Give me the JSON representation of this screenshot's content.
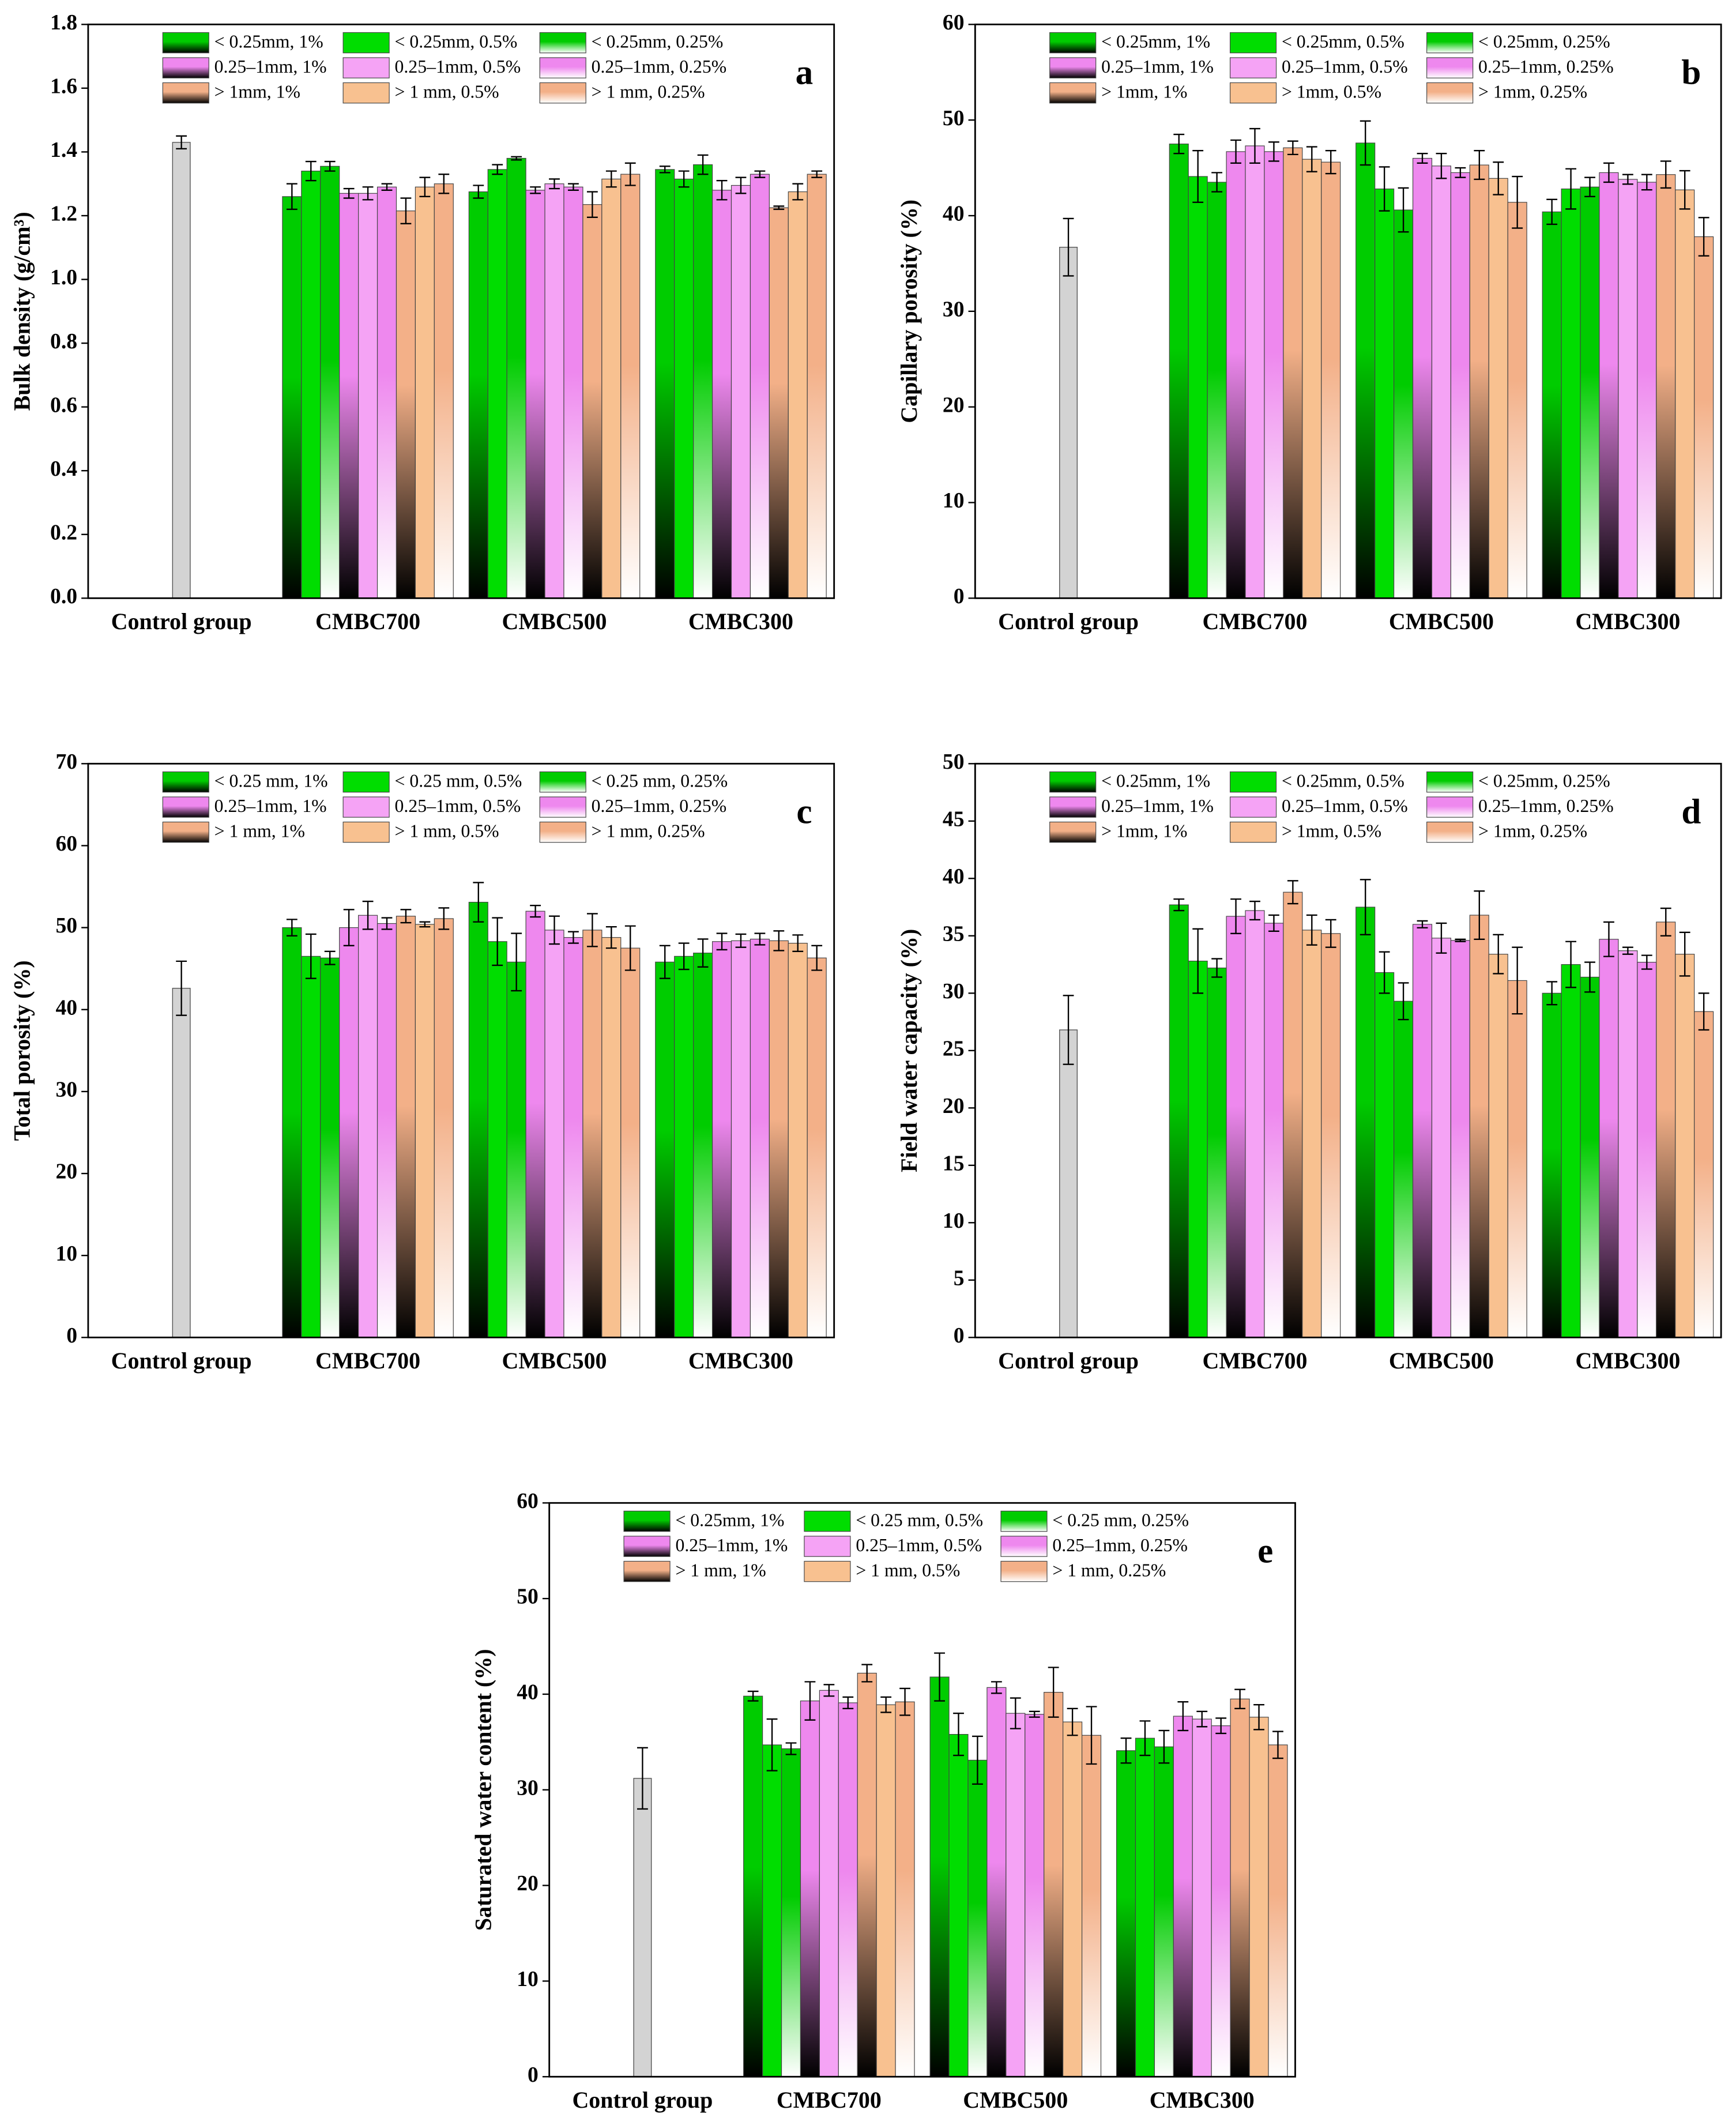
{
  "chart_data": [
    {
      "type": "bar",
      "panel_label": "a",
      "y_label": "Bulk density (g/cm³)",
      "categories": [
        "Control group",
        "CMBC700",
        "CMBC500",
        "CMBC300"
      ],
      "ylim": [
        0,
        1.8
      ],
      "yticks": [
        {
          "value": 0,
          "label": "0.0"
        },
        0.2,
        0.4,
        0.6,
        0.8,
        {
          "value": 1,
          "label": "1.0"
        },
        1.2,
        1.4,
        1.6,
        1.8
      ],
      "control": {
        "value": 1.43,
        "error": 0.02,
        "color": "#d3d3d3"
      },
      "series": [
        {
          "name": "< 0.25mm, 1%",
          "color": "#00cc00",
          "gradient_to": "#000000",
          "values": [
            null,
            1.26,
            1.275,
            1.345
          ],
          "errors": [
            null,
            0.04,
            0.02,
            0.01
          ]
        },
        {
          "name": "< 0.25mm, 0.5%",
          "color": "#00dd00",
          "values": [
            null,
            1.34,
            1.345,
            1.315
          ],
          "errors": [
            null,
            0.03,
            0.015,
            0.025
          ]
        },
        {
          "name": "< 0.25mm, 0.25%",
          "color": "#00cc00",
          "gradient_to": "#ffffff",
          "values": [
            null,
            1.355,
            1.38,
            1.36
          ],
          "errors": [
            null,
            0.015,
            0.005,
            0.03
          ]
        },
        {
          "name": "0.25–1mm, 1%",
          "color": "#ee88ee",
          "gradient_to": "#000000",
          "values": [
            null,
            1.27,
            1.28,
            1.28
          ],
          "errors": [
            null,
            0.015,
            0.01,
            0.03
          ]
        },
        {
          "name": "0.25–1mm, 0.5%",
          "color": "#f5a3f5",
          "values": [
            null,
            1.27,
            1.3,
            1.295
          ],
          "errors": [
            null,
            0.02,
            0.015,
            0.025
          ]
        },
        {
          "name": "0.25–1mm, 0.25%",
          "color": "#ee88ee",
          "gradient_to": "#ffffff",
          "values": [
            null,
            1.29,
            1.29,
            1.33
          ],
          "errors": [
            null,
            0.01,
            0.01,
            0.01
          ]
        },
        {
          "name": "> 1mm, 1%",
          "color": "#f3b088",
          "gradient_to": "#000000",
          "values": [
            null,
            1.215,
            1.235,
            1.225
          ],
          "errors": [
            null,
            0.04,
            0.04,
            0.005
          ]
        },
        {
          "name": "> 1 mm, 0.5%",
          "color": "#f8c190",
          "values": [
            null,
            1.29,
            1.315,
            1.275
          ],
          "errors": [
            null,
            0.03,
            0.025,
            0.025
          ]
        },
        {
          "name": "> 1 mm, 0.25%",
          "color": "#f3b088",
          "gradient_to": "#ffffff",
          "values": [
            null,
            1.3,
            1.33,
            1.33
          ],
          "errors": [
            null,
            0.03,
            0.035,
            0.01
          ]
        }
      ]
    },
    {
      "type": "bar",
      "panel_label": "b",
      "y_label": "Capillary porosity (%)",
      "categories": [
        "Control group",
        "CMBC700",
        "CMBC500",
        "CMBC300"
      ],
      "ylim": [
        0,
        60
      ],
      "yticks": [
        0,
        10,
        20,
        30,
        40,
        50,
        60
      ],
      "control": {
        "value": 36.7,
        "error": 3,
        "color": "#d3d3d3"
      },
      "series": [
        {
          "name": "< 0.25mm, 1%",
          "color": "#00cc00",
          "gradient_to": "#000000",
          "values": [
            null,
            47.5,
            47.6,
            40.4
          ],
          "errors": [
            null,
            1,
            2.3,
            1.3
          ]
        },
        {
          "name": "< 0.25mm, 0.5%",
          "color": "#00dd00",
          "values": [
            null,
            44.1,
            42.8,
            42.8
          ],
          "errors": [
            null,
            2.7,
            2.3,
            2.1
          ]
        },
        {
          "name": "< 0.25mm, 0.25%",
          "color": "#00cc00",
          "gradient_to": "#ffffff",
          "values": [
            null,
            43.5,
            40.6,
            43.0
          ],
          "errors": [
            null,
            1,
            2.3,
            1
          ]
        },
        {
          "name": "0.25–1mm, 1%",
          "color": "#ee88ee",
          "gradient_to": "#000000",
          "values": [
            null,
            46.7,
            46.0,
            44.5
          ],
          "errors": [
            null,
            1.2,
            0.5,
            1
          ]
        },
        {
          "name": "0.25–1mm, 0.5%",
          "color": "#f5a3f5",
          "values": [
            null,
            47.3,
            45.2,
            43.8
          ],
          "errors": [
            null,
            1.8,
            1.3,
            0.5
          ]
        },
        {
          "name": "0.25–1mm, 0.25%",
          "color": "#ee88ee",
          "gradient_to": "#ffffff",
          "values": [
            null,
            46.7,
            44.5,
            43.5
          ],
          "errors": [
            null,
            1,
            0.5,
            0.8
          ]
        },
        {
          "name": "> 1mm, 1%",
          "color": "#f3b088",
          "gradient_to": "#000000",
          "values": [
            null,
            47.1,
            45.3,
            44.3
          ],
          "errors": [
            null,
            0.7,
            1.5,
            1.4
          ]
        },
        {
          "name": "> 1mm, 0.5%",
          "color": "#f8c190",
          "values": [
            null,
            45.9,
            43.9,
            42.7
          ],
          "errors": [
            null,
            1.3,
            1.7,
            2
          ]
        },
        {
          "name": "> 1mm, 0.25%",
          "color": "#f3b088",
          "gradient_to": "#ffffff",
          "values": [
            null,
            45.6,
            41.4,
            37.8
          ],
          "errors": [
            null,
            1.2,
            2.7,
            2
          ]
        }
      ]
    },
    {
      "type": "bar",
      "panel_label": "c",
      "y_label": "Total porosity (%)",
      "categories": [
        "Control group",
        "CMBC700",
        "CMBC500",
        "CMBC300"
      ],
      "ylim": [
        0,
        70
      ],
      "yticks": [
        0,
        10,
        20,
        30,
        40,
        50,
        60,
        70
      ],
      "control": {
        "value": 42.6,
        "error": 3.3,
        "color": "#d3d3d3"
      },
      "series": [
        {
          "name": "< 0.25 mm, 1%",
          "color": "#00cc00",
          "gradient_to": "#000000",
          "values": [
            null,
            50.0,
            53.1,
            45.8
          ],
          "errors": [
            null,
            1,
            2.4,
            2
          ]
        },
        {
          "name": "< 0.25 mm, 0.5%",
          "color": "#00dd00",
          "values": [
            null,
            46.5,
            48.3,
            46.5
          ],
          "errors": [
            null,
            2.7,
            2.9,
            1.6
          ]
        },
        {
          "name": "< 0.25 mm, 0.25%",
          "color": "#00cc00",
          "gradient_to": "#ffffff",
          "values": [
            null,
            46.3,
            45.8,
            46.9
          ],
          "errors": [
            null,
            0.8,
            3.5,
            1.7
          ]
        },
        {
          "name": "0.25–1mm, 1%",
          "color": "#ee88ee",
          "gradient_to": "#000000",
          "values": [
            null,
            50.0,
            52.0,
            48.3
          ],
          "errors": [
            null,
            2.2,
            0.7,
            1
          ]
        },
        {
          "name": "0.25–1mm, 0.5%",
          "color": "#f5a3f5",
          "values": [
            null,
            51.5,
            49.7,
            48.4
          ],
          "errors": [
            null,
            1.7,
            1.7,
            0.8
          ]
        },
        {
          "name": "0.25–1mm, 0.25%",
          "color": "#ee88ee",
          "gradient_to": "#ffffff",
          "values": [
            null,
            50.5,
            48.8,
            48.6
          ],
          "errors": [
            null,
            0.7,
            0.7,
            0.7
          ]
        },
        {
          "name": "> 1 mm, 1%",
          "color": "#f3b088",
          "gradient_to": "#000000",
          "values": [
            null,
            51.4,
            49.7,
            48.4
          ],
          "errors": [
            null,
            0.8,
            2,
            1.2
          ]
        },
        {
          "name": "> 1 mm, 0.5%",
          "color": "#f8c190",
          "values": [
            null,
            50.4,
            48.8,
            48.1
          ],
          "errors": [
            null,
            0.3,
            1.3,
            1
          ]
        },
        {
          "name": "> 1 mm, 0.25%",
          "color": "#f3b088",
          "gradient_to": "#ffffff",
          "values": [
            null,
            51.1,
            47.5,
            46.3
          ],
          "errors": [
            null,
            1.3,
            2.7,
            1.5
          ]
        }
      ]
    },
    {
      "type": "bar",
      "panel_label": "d",
      "y_label": "Field water capacity (%)",
      "categories": [
        "Control group",
        "CMBC700",
        "CMBC500",
        "CMBC300"
      ],
      "ylim": [
        0,
        50
      ],
      "yticks": [
        0,
        5,
        10,
        15,
        20,
        25,
        30,
        35,
        40,
        45,
        50
      ],
      "control": {
        "value": 26.8,
        "error": 3,
        "color": "#d3d3d3"
      },
      "series": [
        {
          "name": "< 0.25mm, 1%",
          "color": "#00cc00",
          "gradient_to": "#000000",
          "values": [
            null,
            37.7,
            37.5,
            30.0
          ],
          "errors": [
            null,
            0.5,
            2.4,
            1
          ]
        },
        {
          "name": "< 0.25mm, 0.5%",
          "color": "#00dd00",
          "values": [
            null,
            32.8,
            31.8,
            32.5
          ],
          "errors": [
            null,
            2.8,
            1.8,
            2
          ]
        },
        {
          "name": "< 0.25mm, 0.25%",
          "color": "#00cc00",
          "gradient_to": "#ffffff",
          "values": [
            null,
            32.2,
            29.3,
            31.4
          ],
          "errors": [
            null,
            0.8,
            1.6,
            1.3
          ]
        },
        {
          "name": "0.25–1mm, 1%",
          "color": "#ee88ee",
          "gradient_to": "#000000",
          "values": [
            null,
            36.7,
            36.0,
            34.7
          ],
          "errors": [
            null,
            1.5,
            0.3,
            1.5
          ]
        },
        {
          "name": "0.25–1mm, 0.5%",
          "color": "#f5a3f5",
          "values": [
            null,
            37.2,
            34.8,
            33.7
          ],
          "errors": [
            null,
            0.8,
            1.3,
            0.3
          ]
        },
        {
          "name": "0.25–1mm, 0.25%",
          "color": "#ee88ee",
          "gradient_to": "#ffffff",
          "values": [
            null,
            36.1,
            34.6,
            32.7
          ],
          "errors": [
            null,
            0.7,
            0.1,
            0.6
          ]
        },
        {
          "name": "> 1mm, 1%",
          "color": "#f3b088",
          "gradient_to": "#000000",
          "values": [
            null,
            38.8,
            36.8,
            36.2
          ],
          "errors": [
            null,
            1,
            2.1,
            1.2
          ]
        },
        {
          "name": "> 1mm, 0.5%",
          "color": "#f8c190",
          "values": [
            null,
            35.5,
            33.4,
            33.4
          ],
          "errors": [
            null,
            1.3,
            1.7,
            1.9
          ]
        },
        {
          "name": "> 1mm, 0.25%",
          "color": "#f3b088",
          "gradient_to": "#ffffff",
          "values": [
            null,
            35.2,
            31.1,
            28.4
          ],
          "errors": [
            null,
            1.2,
            2.9,
            1.6
          ]
        }
      ]
    },
    {
      "type": "bar",
      "panel_label": "e",
      "y_label": "Saturated water content (%)",
      "categories": [
        "Control group",
        "CMBC700",
        "CMBC500",
        "CMBC300"
      ],
      "ylim": [
        0,
        60
      ],
      "yticks": [
        0,
        10,
        20,
        30,
        40,
        50,
        60
      ],
      "control": {
        "value": 31.2,
        "error": 3.2,
        "color": "#d3d3d3"
      },
      "series": [
        {
          "name": "< 0.25mm, 1%",
          "color": "#00cc00",
          "gradient_to": "#000000",
          "values": [
            null,
            39.8,
            41.8,
            34.1
          ],
          "errors": [
            null,
            0.5,
            2.5,
            1.3
          ]
        },
        {
          "name": "< 0.25 mm, 0.5%",
          "color": "#00dd00",
          "values": [
            null,
            34.7,
            35.8,
            35.4
          ],
          "errors": [
            null,
            2.7,
            2.2,
            1.8
          ]
        },
        {
          "name": "< 0.25 mm, 0.25%",
          "color": "#00cc00",
          "gradient_to": "#ffffff",
          "values": [
            null,
            34.3,
            33.1,
            34.5
          ],
          "errors": [
            null,
            0.6,
            2.5,
            1.7
          ]
        },
        {
          "name": "0.25–1mm, 1%",
          "color": "#ee88ee",
          "gradient_to": "#000000",
          "values": [
            null,
            39.3,
            40.7,
            37.7
          ],
          "errors": [
            null,
            2,
            0.6,
            1.5
          ]
        },
        {
          "name": "0.25–1mm, 0.5%",
          "color": "#f5a3f5",
          "values": [
            null,
            40.4,
            38.0,
            37.4
          ],
          "errors": [
            null,
            0.6,
            1.6,
            0.8
          ]
        },
        {
          "name": "0.25–1mm, 0.25%",
          "color": "#ee88ee",
          "gradient_to": "#ffffff",
          "values": [
            null,
            39.1,
            37.9,
            36.7
          ],
          "errors": [
            null,
            0.6,
            0.3,
            0.8
          ]
        },
        {
          "name": "> 1 mm, 1%",
          "color": "#f3b088",
          "gradient_to": "#000000",
          "values": [
            null,
            42.2,
            40.2,
            39.5
          ],
          "errors": [
            null,
            0.9,
            2.6,
            1
          ]
        },
        {
          "name": "> 1 mm, 0.5%",
          "color": "#f8c190",
          "values": [
            null,
            38.9,
            37.1,
            37.6
          ],
          "errors": [
            null,
            0.8,
            1.4,
            1.3
          ]
        },
        {
          "name": "> 1 mm, 0.25%",
          "color": "#f3b088",
          "gradient_to": "#ffffff",
          "values": [
            null,
            39.2,
            35.7,
            34.7
          ],
          "errors": [
            null,
            1.4,
            3,
            1.4
          ]
        }
      ]
    }
  ]
}
